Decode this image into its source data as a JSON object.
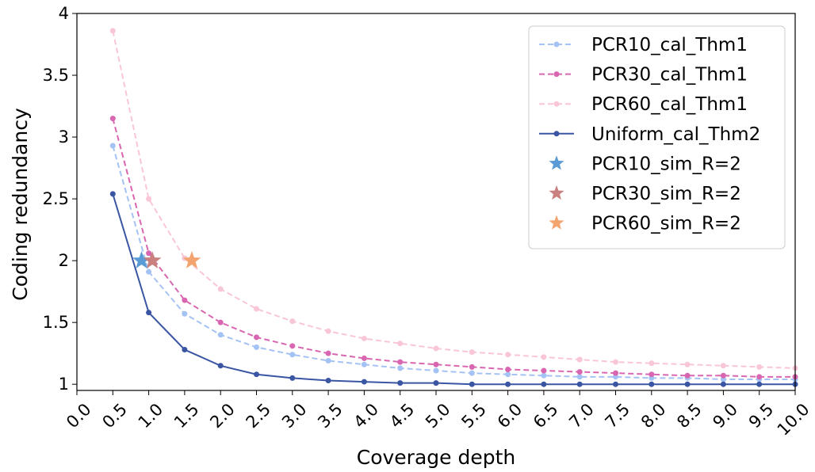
{
  "chart_data": {
    "type": "line",
    "xlabel": "Coverage depth",
    "ylabel": "Coding redundancy",
    "xlim": [
      0,
      10
    ],
    "ylim": [
      0.95,
      4
    ],
    "xticks": [
      "0.0",
      "0.5",
      "1.0",
      "1.5",
      "2.0",
      "2.5",
      "3.0",
      "3.5",
      "4.0",
      "4.5",
      "5.0",
      "5.5",
      "6.0",
      "6.5",
      "7.0",
      "7.5",
      "8.0",
      "8.5",
      "9.0",
      "9.5",
      "10.0"
    ],
    "yticks": [
      {
        "value": 1,
        "label": "1"
      },
      {
        "value": 1.5,
        "label": "1.5"
      },
      {
        "value": 2,
        "label": "2"
      },
      {
        "value": 2.5,
        "label": "2.5"
      },
      {
        "value": 3,
        "label": "3"
      },
      {
        "value": 3.5,
        "label": "3.5"
      },
      {
        "value": 4,
        "label": "4"
      }
    ],
    "grid": false,
    "legend_position": "top-right",
    "x": [
      0.5,
      1.0,
      1.5,
      2.0,
      2.5,
      3.0,
      3.5,
      4.0,
      4.5,
      5.0,
      5.5,
      6.0,
      6.5,
      7.0,
      7.5,
      8.0,
      8.5,
      9.0,
      9.5,
      10.0
    ],
    "series": [
      {
        "name": "PCR10_cal_Thm1",
        "style": "dashed",
        "color": "#a4c2f4",
        "values": [
          2.93,
          1.91,
          1.57,
          1.4,
          1.3,
          1.24,
          1.19,
          1.16,
          1.13,
          1.11,
          1.09,
          1.08,
          1.07,
          1.06,
          1.06,
          1.05,
          1.05,
          1.04,
          1.04,
          1.04
        ]
      },
      {
        "name": "PCR30_cal_Thm1",
        "style": "dashed",
        "color": "#d966b0",
        "values": [
          3.15,
          2.06,
          1.68,
          1.5,
          1.38,
          1.31,
          1.25,
          1.21,
          1.18,
          1.16,
          1.14,
          1.12,
          1.11,
          1.1,
          1.09,
          1.08,
          1.07,
          1.07,
          1.06,
          1.06
        ]
      },
      {
        "name": "PCR60_cal_Thm1",
        "style": "dashed",
        "color": "#f9c6d8",
        "values": [
          3.86,
          2.5,
          2.02,
          1.77,
          1.61,
          1.51,
          1.43,
          1.37,
          1.33,
          1.29,
          1.26,
          1.24,
          1.22,
          1.2,
          1.18,
          1.17,
          1.16,
          1.15,
          1.14,
          1.13
        ]
      },
      {
        "name": "Uniform_cal_Thm2",
        "style": "solid",
        "color": "#3a56a3",
        "values": [
          2.54,
          1.58,
          1.28,
          1.15,
          1.08,
          1.05,
          1.03,
          1.02,
          1.01,
          1.01,
          1.0,
          1.0,
          1.0,
          1.0,
          1.0,
          1.0,
          1.0,
          1.0,
          1.0,
          1.0
        ]
      }
    ],
    "points": [
      {
        "name": "PCR10_sim_R=2",
        "marker": "star",
        "color": "#5b9bd5",
        "x": 0.9,
        "y": 2.0
      },
      {
        "name": "PCR30_sim_R=2",
        "marker": "star",
        "color": "#c9807e",
        "x": 1.05,
        "y": 2.0
      },
      {
        "name": "PCR60_sim_R=2",
        "marker": "star",
        "color": "#f4a46e",
        "x": 1.6,
        "y": 2.0
      }
    ]
  }
}
